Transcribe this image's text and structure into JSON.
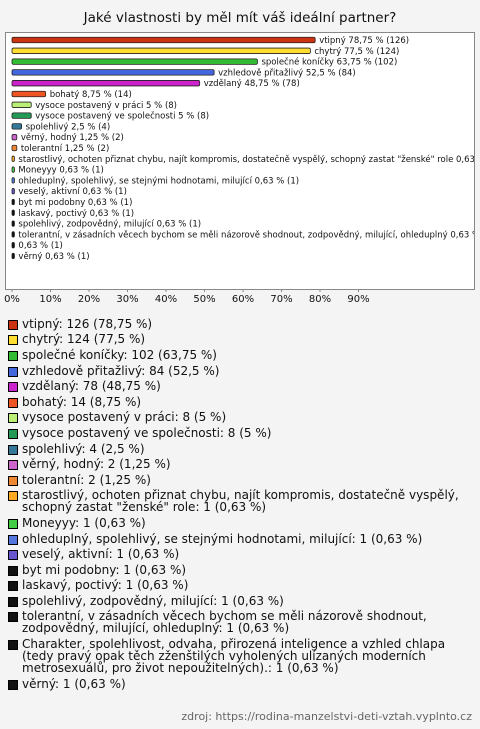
{
  "chart_data": {
    "type": "barh",
    "title": "Jaké vlastnosti by měl mít váš ideální partner?",
    "values": [
      78.75,
      77.5,
      63.75,
      52.5,
      48.75,
      8.75,
      5,
      5,
      2.5,
      1.25,
      1.25,
      0.63,
      0.63,
      0.63,
      0.63,
      0.63,
      0.63,
      0.63,
      0.63,
      0.63,
      0.63
    ],
    "value_labels": [
      "vtipný 78,75 % (126)",
      "chytrý 77,5 % (124)",
      "společné koníčky 63,75 % (102)",
      "vzhledově přitažlivý 52,5 % (84)",
      "vzdělaný 48,75 % (78)",
      "bohatý 8,75 % (14)",
      "vysoce postavený v práci 5 % (8)",
      "vysoce postavený ve společnosti 5 % (8)",
      "spolehlivý 2,5 % (4)",
      "věrný, hodný 1,25 % (2)",
      "tolerantní 1,25 % (2)",
      "starostlivý, ochoten přiznat chybu, najít kompromis, dostatečně vyspělý, schopný zastat \"ženské\" role 0,63 % (1",
      "Moneyyy 0,63 % (1)",
      "ohleduplný, spolehlivý, se stejnými hodnotami, milující 0,63 % (1)",
      "veselý, aktivní 0,63 % (1)",
      "byt mi podobny 0,63 % (1)",
      "laskavý, poctivý 0,63 % (1)",
      "spolehlivý, zodpovědný, milující 0,63 % (1)",
      "tolerantní, v zásadních věcech bychom se měli názorově shodnout, zodpovědný, milující, ohleduplný 0,63 % (1",
      "0,63 % (1)",
      "věrný 0,63 % (1)"
    ],
    "legend": [
      "vtipný: 126 (78,75 %)",
      "chytrý: 124 (77,5 %)",
      "společné koníčky: 102 (63,75 %)",
      "vzhledově přitažlivý: 84 (52,5 %)",
      "vzdělaný: 78 (48,75 %)",
      "bohatý: 14 (8,75 %)",
      "vysoce postavený v práci: 8 (5 %)",
      "vysoce postavený ve společnosti: 8 (5 %)",
      "spolehlivý: 4 (2,5 %)",
      "věrný, hodný: 2 (1,25 %)",
      "tolerantní: 2 (1,25 %)",
      "starostlivý, ochoten přiznat chybu, najít kompromis, dostatečně vyspělý, schopný zastat \"ženské\" role: 1 (0,63 %)",
      "Moneyyy: 1 (0,63 %)",
      "ohleduplný, spolehlivý, se stejnými hodnotami, milující: 1 (0,63 %)",
      "veselý, aktivní: 1 (0,63 %)",
      "byt mi podobny: 1 (0,63 %)",
      "laskavý, poctivý: 1 (0,63 %)",
      "spolehlivý, zodpovědný, milující: 1 (0,63 %)",
      "tolerantní, v zásadních věcech bychom se měli názorově shodnout, zodpovědný, milující, ohleduplný: 1 (0,63 %)",
      "Charakter, spolehlivost, odvaha, přirozená inteligence a vzhled chlapa (tedy pravý opak těch zženštilých vyholených ulízaných moderních metrosexuálů, pro život nepoužitelných).: 1 (0,63 %)",
      "věrný: 1 (0,63 %)"
    ],
    "colors": [
      "#cc3311",
      "#ffdd33",
      "#33bb33",
      "#4466dd",
      "#cc22cc",
      "#ee5522",
      "#bbee77",
      "#229955",
      "#337799",
      "#cc66cc",
      "#ee8833",
      "#ffaa22",
      "#44cc44",
      "#5577dd",
      "#6655cc",
      "#111111",
      "#111111",
      "#111111",
      "#111111",
      "#111111",
      "#111111"
    ],
    "xlim": [
      0,
      100
    ],
    "xticks": [
      {
        "value": 0,
        "label": "0%"
      },
      {
        "value": 10,
        "label": "10%"
      },
      {
        "value": 20,
        "label": "20%"
      },
      {
        "value": 30,
        "label": "30%"
      },
      {
        "value": 40,
        "label": "40%"
      },
      {
        "value": 50,
        "label": "50%"
      },
      {
        "value": 60,
        "label": "60%"
      },
      {
        "value": 70,
        "label": "70%"
      },
      {
        "value": 80,
        "label": "80%"
      },
      {
        "value": 90,
        "label": "90%"
      }
    ],
    "source": "zdroj: https://rodina-manzelstvi-deti-vztah.vyplnto.cz"
  }
}
